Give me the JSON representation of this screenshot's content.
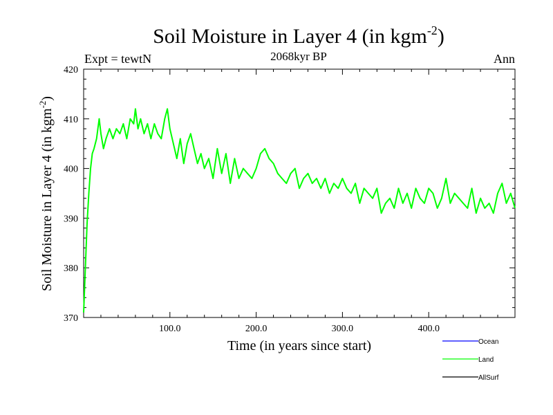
{
  "chart_data": {
    "type": "line",
    "title": "Soil Moisture in Layer 4 (in kgm",
    "title_superscript": "-2",
    "title_suffix": ")",
    "subtitle": "2068kyr BP",
    "left_label": "Expt = tewtN",
    "right_label": "Ann",
    "xlabel": "Time (in years since start)",
    "ylabel": "Soil Moisture in Layer 4 (in kgm",
    "ylabel_superscript": "-2",
    "ylabel_suffix": ")",
    "xlim": [
      0,
      500
    ],
    "ylim": [
      370,
      420
    ],
    "x_ticks": [
      100,
      200,
      300,
      400
    ],
    "x_tick_labels": [
      "100.0",
      "200.0",
      "300.0",
      "400.0"
    ],
    "y_ticks": [
      370,
      380,
      390,
      400,
      410,
      420
    ],
    "y_tick_labels": [
      "370",
      "380",
      "390",
      "400",
      "410",
      "420"
    ],
    "legend": [
      {
        "name": "Ocean",
        "color": "#0000ff"
      },
      {
        "name": "Land",
        "color": "#00ff00"
      },
      {
        "name": "AllSurf",
        "color": "#000000"
      }
    ],
    "series": [
      {
        "name": "Land",
        "color": "#00ff00",
        "x": [
          0,
          2,
          4,
          6,
          8,
          10,
          12,
          15,
          18,
          20,
          23,
          26,
          30,
          34,
          38,
          42,
          46,
          50,
          54,
          58,
          60,
          63,
          66,
          70,
          74,
          78,
          82,
          86,
          90,
          94,
          97,
          100,
          104,
          108,
          112,
          116,
          120,
          124,
          128,
          132,
          136,
          140,
          145,
          150,
          155,
          160,
          165,
          170,
          175,
          180,
          185,
          190,
          195,
          200,
          205,
          210,
          215,
          220,
          225,
          230,
          235,
          240,
          245,
          250,
          255,
          260,
          265,
          270,
          275,
          280,
          285,
          290,
          295,
          300,
          305,
          310,
          315,
          320,
          325,
          330,
          335,
          340,
          345,
          350,
          355,
          360,
          365,
          370,
          375,
          380,
          385,
          390,
          395,
          400,
          405,
          410,
          415,
          420,
          425,
          430,
          435,
          440,
          445,
          450,
          455,
          460,
          465,
          470,
          475,
          480,
          485,
          490,
          495,
          500
        ],
        "values": [
          371,
          380,
          389,
          395,
          400,
          403,
          404,
          406,
          410,
          407,
          404,
          406,
          408,
          406,
          408,
          407,
          409,
          406,
          410,
          409,
          412,
          408,
          410,
          407,
          409,
          406,
          409,
          407,
          406,
          410,
          412,
          408,
          405,
          402,
          406,
          401,
          405,
          407,
          404,
          401,
          403,
          400,
          402,
          398,
          404,
          399,
          403,
          397,
          402,
          398,
          400,
          399,
          398,
          400,
          403,
          404,
          402,
          401,
          399,
          398,
          397,
          399,
          400,
          396,
          398,
          399,
          397,
          398,
          396,
          398,
          395,
          397,
          396,
          398,
          396,
          395,
          397,
          393,
          396,
          395,
          394,
          396,
          391,
          393,
          394,
          392,
          396,
          393,
          395,
          392,
          396,
          394,
          393,
          396,
          395,
          392,
          394,
          398,
          393,
          395,
          394,
          393,
          392,
          396,
          391,
          394,
          392,
          393,
          391,
          395,
          397,
          393,
          395,
          392
        ]
      }
    ]
  }
}
